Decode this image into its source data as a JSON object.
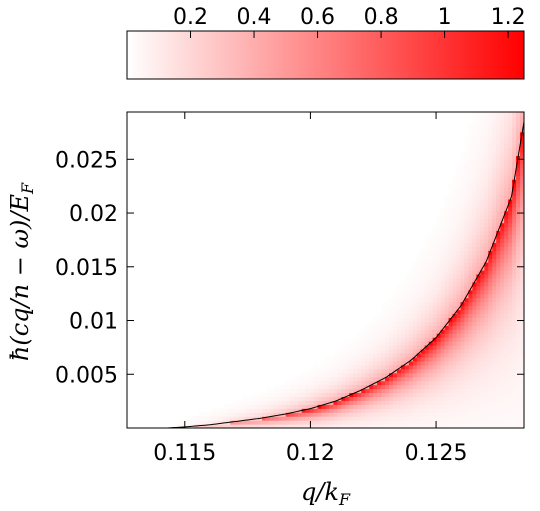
{
  "chart_data": {
    "type": "heatmap",
    "title": "",
    "xlabel": "q/k_F",
    "ylabel": "ħ(cq/n − ω)/E_F",
    "xlim": [
      0.1127,
      0.1285
    ],
    "ylim": [
      0.0,
      0.0294
    ],
    "x_ticks": [
      0.115,
      0.12,
      0.125
    ],
    "x_tick_labels": [
      "0.115",
      "0.12",
      "0.125"
    ],
    "y_ticks": [
      0.005,
      0.01,
      0.015,
      0.02,
      0.025
    ],
    "y_tick_labels": [
      "0.005",
      "0.01",
      "0.015",
      "0.02",
      "0.025"
    ],
    "colorbar": {
      "min": 0.0,
      "max": 1.25,
      "ticks": [
        0.2,
        0.4,
        0.6,
        0.8,
        1.0,
        1.2
      ],
      "tick_labels": [
        "0.2",
        "0.4",
        "0.6",
        "0.8",
        "1",
        "1.2"
      ],
      "color_low": "#ffffff",
      "color_high": "#ff0000"
    },
    "boundary_curve": {
      "color": "#000000",
      "x": [
        0.1143,
        0.115,
        0.116,
        0.117,
        0.118,
        0.119,
        0.12,
        0.121,
        0.122,
        0.123,
        0.124,
        0.125,
        0.126,
        0.127,
        0.128,
        0.1285
      ],
      "y": [
        0.0,
        0.0001,
        0.0003,
        0.0006,
        0.0009,
        0.0013,
        0.0018,
        0.0025,
        0.0035,
        0.0047,
        0.0063,
        0.0084,
        0.0114,
        0.0155,
        0.0215,
        0.0285
      ]
    }
  }
}
